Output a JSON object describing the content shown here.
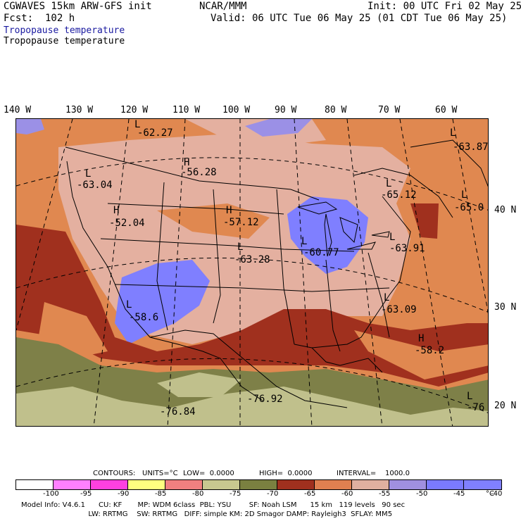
{
  "header": {
    "model": "CGWAVES 15km ARW-GFS init",
    "org": "NCAR/MMM",
    "init": "Init: 00 UTC Fri 02 May 25",
    "fcst": "Fcst:  102 h",
    "valid": "Valid: 06 UTC Tue 06 May 25 (01 CDT Tue 06 May 25)",
    "field_title_1": "Tropopause temperature",
    "field_title_2": "Tropopause temperature"
  },
  "longitudes": [
    "140 W",
    "130 W",
    "120 W",
    "110 W",
    "100 W",
    "90 W",
    "80 W",
    "70 W",
    "60 W"
  ],
  "latitudes": [
    "40 N",
    "30 N",
    "20 N"
  ],
  "map_labels": [
    {
      "mark": "L",
      "value": "-62.27"
    },
    {
      "mark": "L",
      "value": "-63.87"
    },
    {
      "mark": "H",
      "value": "-56.28"
    },
    {
      "mark": "L",
      "value": "-63.04"
    },
    {
      "mark": "L",
      "value": "-65.12"
    },
    {
      "mark": "L",
      "value": "-65.0"
    },
    {
      "mark": "H",
      "value": "-52.04"
    },
    {
      "mark": "H",
      "value": "-57.12"
    },
    {
      "mark": "L",
      "value": "-63.28"
    },
    {
      "mark": "L",
      "value": "-60.77"
    },
    {
      "mark": "L",
      "value": "-63.91"
    },
    {
      "mark": "L",
      "value": "-58.6"
    },
    {
      "mark": "L",
      "value": "-63.09"
    },
    {
      "mark": "H",
      "value": "-58.2"
    },
    {
      "mark": "",
      "value": "-76.92"
    },
    {
      "mark": "",
      "value": "-76.84"
    },
    {
      "mark": "L",
      "value": "-76"
    }
  ],
  "contours": {
    "label": "CONTOURS:",
    "units": "UNITS=°C",
    "low": "LOW=  0.0000",
    "high": "HIGH=  0.0000",
    "interval": "INTERVAL=    1000.0"
  },
  "colorbar": {
    "colors": [
      "#ffffff",
      "#ff80ff",
      "#ff40e0",
      "#ffff80",
      "#f08080",
      "#c8c890",
      "#7a8040",
      "#a0301e",
      "#e08050",
      "#e0b0a0",
      "#a090e0",
      "#7a7aff",
      "#8080ff"
    ],
    "ticks": [
      "-100",
      "-95",
      "-90",
      "-85",
      "-80",
      "-75",
      "-70",
      "-65",
      "-60",
      "-55",
      "-50",
      "-45",
      "-40"
    ],
    "unit": "°C"
  },
  "footer": {
    "line1": "Model Info: V4.6.1      CU: KF       MP: WDM 6class  PBL: YSU        SF: Noah LSM      15 km   119 levels   90 sec",
    "line2": "                              LW: RRTMG    SW: RRTMG   DIFF: simple KM: 2D Smagor DAMP: Rayleigh3  SFLAY: MM5"
  },
  "palette": {
    "purple_high": "#7f7fff",
    "pink_mid": "#e4b0a0",
    "orange": "#e08850",
    "brick": "#a0301e",
    "olive": "#7e8048",
    "khaki": "#c0c08c"
  }
}
